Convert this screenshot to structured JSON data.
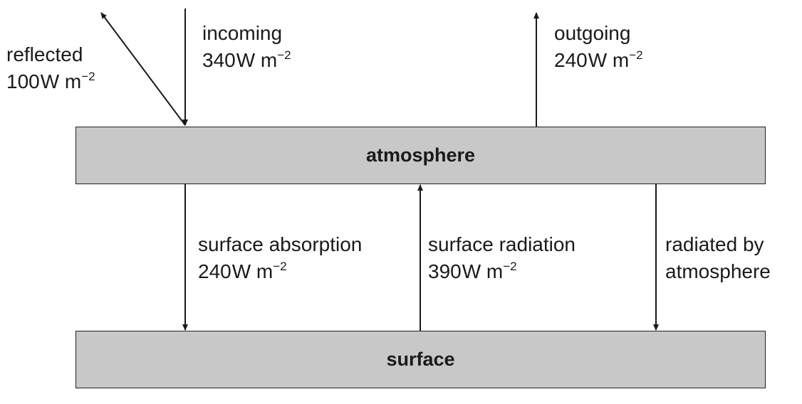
{
  "boxes": {
    "atmosphere": "atmosphere",
    "surface": "surface"
  },
  "flows": {
    "reflected": {
      "name": "reflected",
      "value": "100",
      "unit": "W m",
      "exp": "−2"
    },
    "incoming": {
      "name": "incoming",
      "value": "340",
      "unit": "W m",
      "exp": "−2"
    },
    "outgoing": {
      "name": "outgoing",
      "value": "240",
      "unit": "W m",
      "exp": "−2"
    },
    "surface_absorption": {
      "name": "surface absorption",
      "value": "240",
      "unit": "W m",
      "exp": "−2"
    },
    "surface_radiation": {
      "name": "surface radiation",
      "value": "390",
      "unit": "W m",
      "exp": "−2"
    },
    "radiated_by_atmosphere": {
      "line1": "radiated by",
      "line2": "atmosphere"
    }
  },
  "colors": {
    "box_fill": "#c8c8c8",
    "line": "#1a1a1a"
  }
}
